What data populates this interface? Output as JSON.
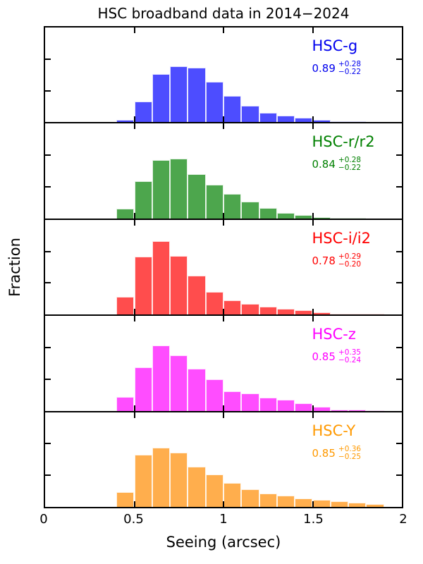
{
  "figure": {
    "title": "HSC broadband data in 2014−2024",
    "xlabel": "Seeing (arcsec)",
    "ylabel": "Fraction"
  },
  "axes": {
    "x_tick_labels": [
      "0",
      "0.5",
      "1",
      "1.5",
      "2"
    ]
  },
  "chart_data": {
    "type": "bar",
    "title": "HSC broadband data in 2014−2024",
    "xlabel": "Seeing (arcsec)",
    "ylabel": "Fraction",
    "xlim": [
      0,
      2
    ],
    "ylim": [
      0,
      0.3
    ],
    "x_ticks": [
      0,
      0.5,
      1,
      1.5,
      2
    ],
    "x_inner_ticks": [
      0.5,
      1,
      1.5
    ],
    "y_inner_ticks": [
      0.1,
      0.2
    ],
    "grid": false,
    "bin_start": 0.4,
    "bin_width": 0.1,
    "bin_edges": [
      0.4,
      0.5,
      0.6,
      0.7,
      0.8,
      0.9,
      1.0,
      1.1,
      1.2,
      1.3,
      1.4,
      1.5,
      1.6,
      1.7,
      1.8,
      1.9
    ],
    "panels": [
      {
        "name": "HSC-g",
        "median": "0.89",
        "err_plus": "+0.28",
        "err_minus": "−0.22",
        "text_color": "#0000ee",
        "bar_color": "#4d4dff",
        "fractions": [
          0.008,
          0.065,
          0.152,
          0.178,
          0.172,
          0.128,
          0.083,
          0.053,
          0.031,
          0.022,
          0.014,
          0.008,
          0.004,
          0.002,
          0.0
        ]
      },
      {
        "name": "HSC-r/r2",
        "median": "0.84",
        "err_plus": "+0.28",
        "err_minus": "−0.22",
        "text_color": "#008000",
        "bar_color": "#4da64d",
        "fractions": [
          0.031,
          0.119,
          0.184,
          0.19,
          0.141,
          0.106,
          0.078,
          0.053,
          0.034,
          0.017,
          0.01,
          0.004,
          0.002,
          0.001,
          0.0
        ]
      },
      {
        "name": "HSC-i/i2",
        "median": "0.78",
        "err_plus": "+0.29",
        "err_minus": "−0.20",
        "text_color": "#ff0000",
        "bar_color": "#ff4d4d",
        "fractions": [
          0.057,
          0.183,
          0.232,
          0.186,
          0.124,
          0.072,
          0.046,
          0.034,
          0.025,
          0.018,
          0.014,
          0.007,
          0.003,
          0.002,
          0.001
        ]
      },
      {
        "name": "HSC-z",
        "median": "0.85",
        "err_plus": "+0.35",
        "err_minus": "−0.24",
        "text_color": "#ff00ff",
        "bar_color": "#ff4dff",
        "fractions": [
          0.043,
          0.137,
          0.207,
          0.176,
          0.134,
          0.099,
          0.061,
          0.056,
          0.041,
          0.035,
          0.023,
          0.013,
          0.004,
          0.003,
          0.002
        ]
      },
      {
        "name": "HSC-Y",
        "median": "0.85",
        "err_plus": "+0.36",
        "err_minus": "−0.25",
        "text_color": "#ff9900",
        "bar_color": "#ffae4d",
        "fractions": [
          0.048,
          0.166,
          0.188,
          0.172,
          0.128,
          0.103,
          0.077,
          0.055,
          0.042,
          0.035,
          0.027,
          0.022,
          0.018,
          0.013,
          0.009
        ]
      }
    ]
  }
}
